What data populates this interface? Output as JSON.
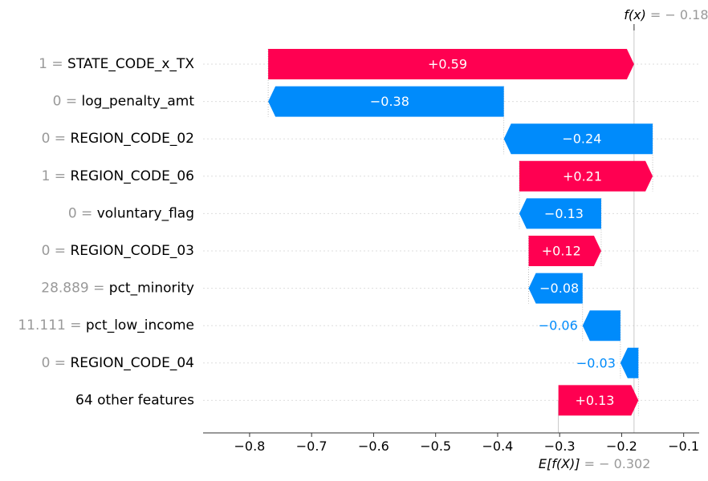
{
  "chart_data": {
    "type": "bar",
    "subtype": "shap-waterfall",
    "title": "",
    "xlabel": "",
    "ylabel": "",
    "xlim": [
      -0.875,
      -0.075
    ],
    "xticks": [
      -0.8,
      -0.7,
      -0.6,
      -0.5,
      -0.4,
      -0.3,
      -0.2,
      -0.1
    ],
    "xtick_labels": [
      "−0.8",
      "−0.7",
      "−0.6",
      "−0.5",
      "−0.4",
      "−0.3",
      "−0.2",
      "−0.1"
    ],
    "base_value": -0.302,
    "output_value": -0.18,
    "fx_label": {
      "prefix": "f(x)",
      "value": " = − 0.18"
    },
    "efx_label": {
      "prefix": "E[f(X)]",
      "value": " = − 0.302"
    },
    "features": [
      {
        "value_text": "1 = ",
        "name": "STATE_CODE_x_TX",
        "contribution": 0.59,
        "label": "+0.59",
        "start": -0.18,
        "end": -0.77
      },
      {
        "value_text": "0 = ",
        "name": "log_penalty_amt",
        "contribution": -0.38,
        "label": "−0.38",
        "start": -0.77,
        "end": -0.39
      },
      {
        "value_text": "0 = ",
        "name": "REGION_CODE_02",
        "contribution": -0.24,
        "label": "−0.24",
        "start": -0.39,
        "end": -0.15
      },
      {
        "value_text": "1 = ",
        "name": "REGION_CODE_06",
        "contribution": 0.21,
        "label": "+0.21",
        "start": -0.15,
        "end": -0.365
      },
      {
        "value_text": "0 = ",
        "name": "voluntary_flag",
        "contribution": -0.13,
        "label": "−0.13",
        "start": -0.365,
        "end": -0.233
      },
      {
        "value_text": "0 = ",
        "name": "REGION_CODE_03",
        "contribution": 0.12,
        "label": "+0.12",
        "start": -0.233,
        "end": -0.35
      },
      {
        "value_text": "28.889 = ",
        "name": "pct_minority",
        "contribution": -0.08,
        "label": "−0.08",
        "start": -0.35,
        "end": -0.263
      },
      {
        "value_text": "11.111 = ",
        "name": "pct_low_income",
        "contribution": -0.06,
        "label": "−0.06",
        "start": -0.263,
        "end": -0.202
      },
      {
        "value_text": "0 = ",
        "name": "REGION_CODE_04",
        "contribution": -0.03,
        "label": "−0.03",
        "start": -0.202,
        "end": -0.173
      },
      {
        "value_text": "",
        "name": "64 other features",
        "contribution": 0.13,
        "label": "+0.13",
        "start": -0.173,
        "end": -0.302
      }
    ],
    "colors": {
      "positive": "#ff0051",
      "negative": "#008bfb",
      "feature_value": "#999999",
      "grid": "#dddddd",
      "reference_line": "#bbbbbb"
    }
  }
}
